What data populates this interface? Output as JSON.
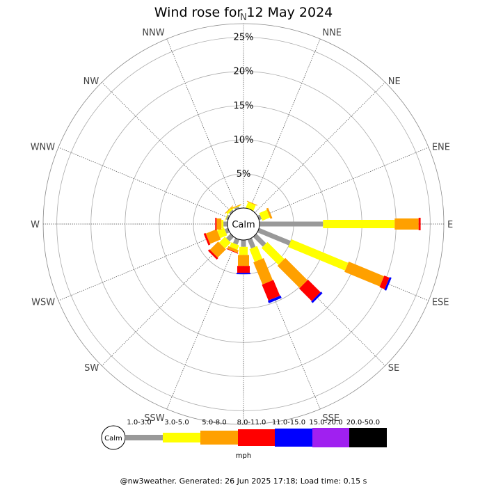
{
  "chart_data": {
    "type": "windrose",
    "title": "Wind rose for 12 May 2024",
    "directions": [
      "N",
      "NNE",
      "NE",
      "ENE",
      "E",
      "ESE",
      "SE",
      "SSE",
      "S",
      "SSW",
      "SW",
      "WSW",
      "W",
      "WNW",
      "NW",
      "NNW"
    ],
    "radial_ticks": [
      "5%",
      "10%",
      "15%",
      "20%",
      "25%"
    ],
    "radial_tick_values": [
      5,
      10,
      15,
      20,
      25
    ],
    "rmax_percent": 27,
    "calm_label": "Calm",
    "unit_label": "mph",
    "speed_bins": [
      {
        "label": "1.0-3.0",
        "color": "#999999"
      },
      {
        "label": "3.0-5.0",
        "color": "#ffff00"
      },
      {
        "label": "5.0-8.0",
        "color": "#ffa000"
      },
      {
        "label": "8.0-11.0",
        "color": "#ff0000"
      },
      {
        "label": "11.0-15.0",
        "color": "#0000ff"
      },
      {
        "label": "15.0-20.0",
        "color": "#a020f0"
      },
      {
        "label": "20.0-50.0",
        "color": "#000000"
      }
    ],
    "frequencies_percent": {
      "N": [
        0.0,
        0.0,
        0.0,
        0.0,
        0.0,
        0.0,
        0.0
      ],
      "NNE": [
        0.0,
        0.9,
        0.1,
        0.0,
        0.0,
        0.0,
        0.0
      ],
      "NE": [
        0.0,
        0.0,
        0.0,
        0.0,
        0.0,
        0.0,
        0.0
      ],
      "ENE": [
        0.4,
        1.2,
        0.3,
        0.0,
        0.0,
        0.0,
        0.0
      ],
      "E": [
        9.3,
        10.5,
        3.5,
        0.3,
        0.0,
        0.0,
        0.0
      ],
      "ESE": [
        5.0,
        9.0,
        5.6,
        0.8,
        0.3,
        0.0,
        0.0
      ],
      "SE": [
        2.0,
        3.5,
        4.6,
        2.6,
        0.3,
        0.0,
        0.0
      ],
      "SSE": [
        1.4,
        2.0,
        3.5,
        2.5,
        0.4,
        0.0,
        0.0
      ],
      "S": [
        1.0,
        1.2,
        1.6,
        1.0,
        0.2,
        0.0,
        0.0
      ],
      "SSW": [
        0.8,
        0.7,
        0.4,
        0.1,
        0.0,
        0.0,
        0.0
      ],
      "SW": [
        0.9,
        1.2,
        1.7,
        0.3,
        0.0,
        0.0,
        0.0
      ],
      "WSW": [
        0.5,
        1.1,
        1.7,
        0.3,
        0.0,
        0.0,
        0.0
      ],
      "W": [
        0.6,
        0.3,
        0.7,
        0.2,
        0.0,
        0.0,
        0.0
      ],
      "WNW": [
        0.3,
        0.1,
        0.0,
        0.0,
        0.0,
        0.0,
        0.0
      ],
      "NW": [
        0.3,
        0.3,
        0.1,
        0.0,
        0.0,
        0.0,
        0.0
      ],
      "NNW": [
        0.3,
        0.1,
        0.1,
        0.0,
        0.0,
        0.0,
        0.0
      ]
    }
  },
  "footer": "@nw3weather. Generated: 26 Jun 2025 17:18; Load time: 0.15 s"
}
